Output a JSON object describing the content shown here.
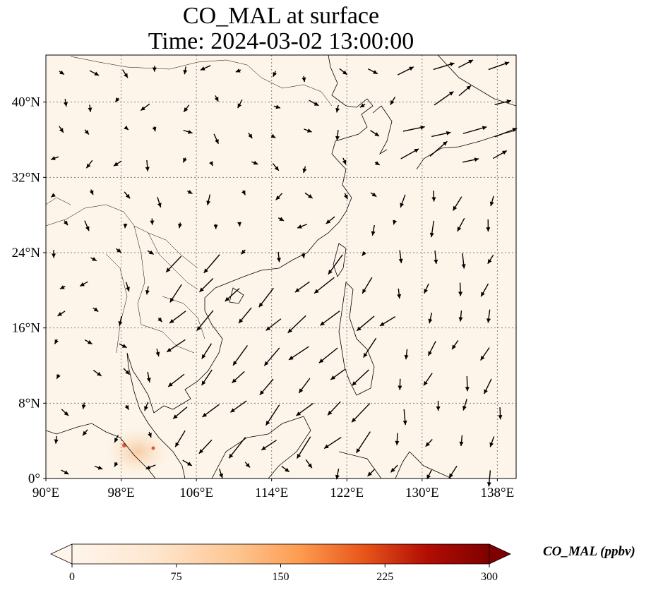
{
  "title": {
    "line1": "CO_MAL at surface",
    "line2": "Time: 2024-03-02 13:00:00"
  },
  "map": {
    "projection": "PlateCarree",
    "lon_range": [
      90,
      140
    ],
    "lat_range": [
      0,
      45
    ],
    "gridlines": "dotted",
    "lon_ticks": [
      {
        "value": 90,
        "label": "90°E"
      },
      {
        "value": 98,
        "label": "98°E"
      },
      {
        "value": 106,
        "label": "106°E"
      },
      {
        "value": 114,
        "label": "114°E"
      },
      {
        "value": 122,
        "label": "122°E"
      },
      {
        "value": 130,
        "label": "130°E"
      },
      {
        "value": 138,
        "label": "138°E"
      }
    ],
    "lat_ticks": [
      {
        "value": 0,
        "label": "0°"
      },
      {
        "value": 8,
        "label": "8°N"
      },
      {
        "value": 16,
        "label": "16°N"
      },
      {
        "value": 24,
        "label": "24°N"
      },
      {
        "value": 32,
        "label": "32°N"
      },
      {
        "value": 40,
        "label": "40°N"
      }
    ],
    "background_color": "#fdf5ea",
    "hotspot_colors": [
      "#fbe3c6",
      "#f6c79b",
      "#e4572e"
    ],
    "wind_vectors": "black quiver arrows; weak in the northwest, strong north-easterly flow over the South China Sea"
  },
  "colorbar": {
    "label": "CO_MAL (ppbv)",
    "min": 0,
    "max": 300,
    "extend": "both",
    "ticks": [
      "0",
      "75",
      "150",
      "225",
      "300"
    ],
    "colors": [
      "#fff5eb",
      "#fdd9b4",
      "#fda762",
      "#f3701b",
      "#c54102",
      "#7f2704"
    ]
  }
}
